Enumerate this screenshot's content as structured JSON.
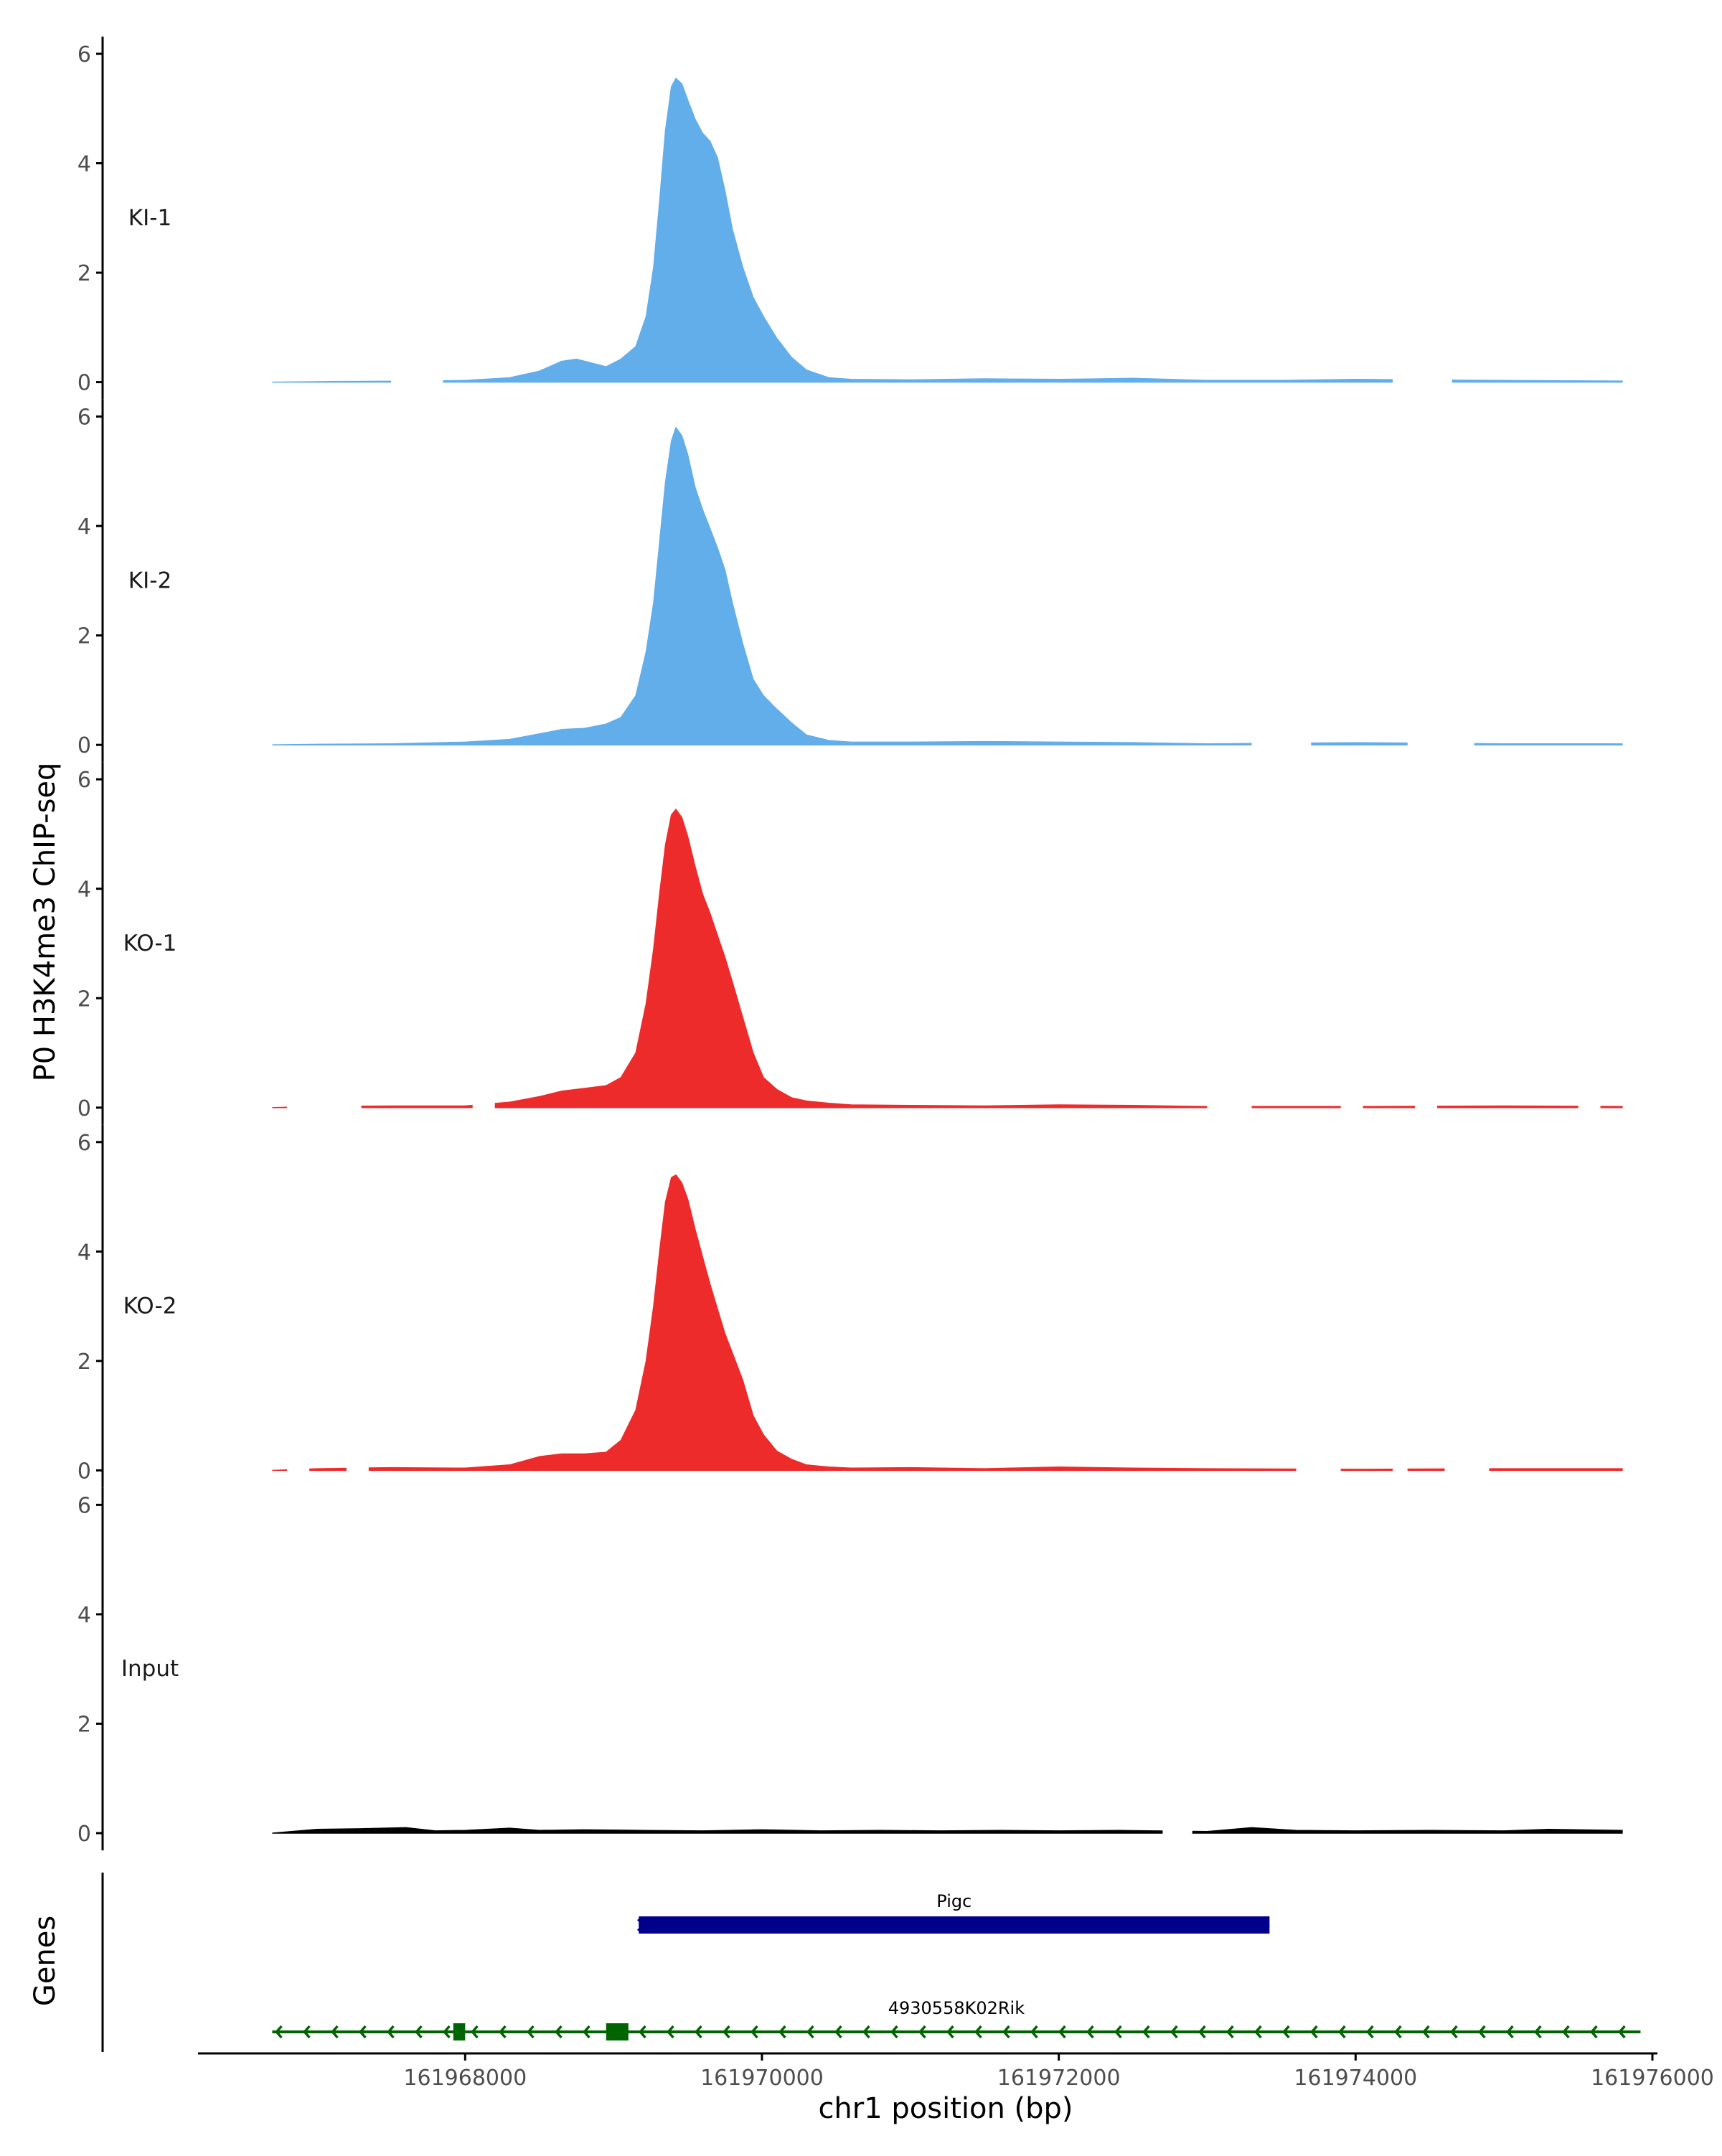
{
  "chart_data": {
    "type": "area",
    "title": "",
    "ylabel": "P0 H3K4me3 ChIP-seq",
    "xlabel": "chr1 position (bp)",
    "gene_track_label": "Genes",
    "xlim": [
      161966200,
      161976000
    ],
    "ylim": [
      0,
      6
    ],
    "y_ticks": [
      0,
      2,
      4,
      6
    ],
    "x_ticks": [
      161968000,
      161970000,
      161972000,
      161974000,
      161976000
    ],
    "x_tick_labels": [
      "161968000",
      "161970000",
      "161972000",
      "161974000",
      "161976000"
    ],
    "tracks": [
      {
        "name": "KI-1",
        "color": "#62aeeb",
        "gaps": [
          [
            161967500,
            161967850
          ],
          [
            161974250,
            161974650
          ]
        ],
        "points": [
          [
            161966700,
            0
          ],
          [
            161967100,
            0.01
          ],
          [
            161967700,
            0.02
          ],
          [
            161968000,
            0.03
          ],
          [
            161968300,
            0.08
          ],
          [
            161968500,
            0.2
          ],
          [
            161968650,
            0.38
          ],
          [
            161968750,
            0.42
          ],
          [
            161968850,
            0.35
          ],
          [
            161968950,
            0.28
          ],
          [
            161969050,
            0.42
          ],
          [
            161969150,
            0.65
          ],
          [
            161969220,
            1.2
          ],
          [
            161969270,
            2.1
          ],
          [
            161969310,
            3.3
          ],
          [
            161969350,
            4.6
          ],
          [
            161969390,
            5.4
          ],
          [
            161969420,
            5.55
          ],
          [
            161969460,
            5.45
          ],
          [
            161969500,
            5.15
          ],
          [
            161969550,
            4.8
          ],
          [
            161969600,
            4.55
          ],
          [
            161969650,
            4.4
          ],
          [
            161969700,
            4.1
          ],
          [
            161969750,
            3.5
          ],
          [
            161969800,
            2.8
          ],
          [
            161969870,
            2.1
          ],
          [
            161969940,
            1.55
          ],
          [
            161970010,
            1.2
          ],
          [
            161970100,
            0.8
          ],
          [
            161970200,
            0.45
          ],
          [
            161970300,
            0.22
          ],
          [
            161970450,
            0.08
          ],
          [
            161970600,
            0.05
          ],
          [
            161971000,
            0.04
          ],
          [
            161971500,
            0.06
          ],
          [
            161972000,
            0.05
          ],
          [
            161972500,
            0.07
          ],
          [
            161973000,
            0.03
          ],
          [
            161973500,
            0.03
          ],
          [
            161974000,
            0.05
          ],
          [
            161975000,
            0.03
          ],
          [
            161975800,
            0.02
          ]
        ]
      },
      {
        "name": "KI-2",
        "color": "#62aeeb",
        "gaps": [
          [
            161973300,
            161973700
          ],
          [
            161974350,
            161974800
          ]
        ],
        "points": [
          [
            161966700,
            0
          ],
          [
            161967000,
            0.01
          ],
          [
            161967500,
            0.02
          ],
          [
            161968000,
            0.05
          ],
          [
            161968300,
            0.1
          ],
          [
            161968500,
            0.2
          ],
          [
            161968650,
            0.28
          ],
          [
            161968800,
            0.3
          ],
          [
            161968950,
            0.38
          ],
          [
            161969050,
            0.5
          ],
          [
            161969150,
            0.9
          ],
          [
            161969220,
            1.7
          ],
          [
            161969270,
            2.6
          ],
          [
            161969310,
            3.7
          ],
          [
            161969350,
            4.8
          ],
          [
            161969390,
            5.55
          ],
          [
            161969420,
            5.8
          ],
          [
            161969460,
            5.65
          ],
          [
            161969500,
            5.3
          ],
          [
            161969550,
            4.7
          ],
          [
            161969600,
            4.3
          ],
          [
            161969650,
            3.95
          ],
          [
            161969700,
            3.6
          ],
          [
            161969750,
            3.2
          ],
          [
            161969800,
            2.6
          ],
          [
            161969870,
            1.85
          ],
          [
            161969940,
            1.2
          ],
          [
            161970010,
            0.9
          ],
          [
            161970100,
            0.65
          ],
          [
            161970200,
            0.4
          ],
          [
            161970300,
            0.18
          ],
          [
            161970450,
            0.08
          ],
          [
            161970600,
            0.05
          ],
          [
            161971000,
            0.05
          ],
          [
            161971500,
            0.06
          ],
          [
            161972000,
            0.05
          ],
          [
            161972500,
            0.04
          ],
          [
            161973000,
            0.02
          ],
          [
            161974000,
            0.04
          ],
          [
            161975000,
            0.02
          ],
          [
            161975800,
            0.02
          ]
        ]
      },
      {
        "name": "KO-1",
        "color": "#ee2b2b",
        "gaps": [
          [
            161966800,
            161967300
          ],
          [
            161968050,
            161968200
          ],
          [
            161973000,
            161973300
          ],
          [
            161973900,
            161974050
          ],
          [
            161974400,
            161974550
          ],
          [
            161975500,
            161975650
          ]
        ],
        "points": [
          [
            161966700,
            0
          ],
          [
            161967000,
            0.02
          ],
          [
            161967500,
            0.03
          ],
          [
            161968000,
            0.03
          ],
          [
            161968300,
            0.1
          ],
          [
            161968500,
            0.2
          ],
          [
            161968650,
            0.3
          ],
          [
            161968800,
            0.35
          ],
          [
            161968950,
            0.4
          ],
          [
            161969050,
            0.55
          ],
          [
            161969150,
            1.0
          ],
          [
            161969220,
            1.9
          ],
          [
            161969270,
            2.9
          ],
          [
            161969310,
            3.9
          ],
          [
            161969350,
            4.8
          ],
          [
            161969390,
            5.35
          ],
          [
            161969420,
            5.45
          ],
          [
            161969460,
            5.3
          ],
          [
            161969500,
            4.95
          ],
          [
            161969550,
            4.4
          ],
          [
            161969600,
            3.9
          ],
          [
            161969650,
            3.55
          ],
          [
            161969700,
            3.15
          ],
          [
            161969750,
            2.75
          ],
          [
            161969800,
            2.3
          ],
          [
            161969870,
            1.65
          ],
          [
            161969940,
            1.0
          ],
          [
            161970010,
            0.55
          ],
          [
            161970100,
            0.33
          ],
          [
            161970200,
            0.18
          ],
          [
            161970300,
            0.12
          ],
          [
            161970450,
            0.08
          ],
          [
            161970600,
            0.05
          ],
          [
            161971000,
            0.04
          ],
          [
            161971500,
            0.03
          ],
          [
            161972000,
            0.05
          ],
          [
            161972500,
            0.04
          ],
          [
            161973000,
            0.02
          ],
          [
            161974000,
            0.02
          ],
          [
            161975000,
            0.03
          ],
          [
            161975800,
            0.02
          ]
        ]
      },
      {
        "name": "KO-2",
        "color": "#ee2b2b",
        "gaps": [
          [
            161966800,
            161966950
          ],
          [
            161967200,
            161967350
          ],
          [
            161973600,
            161973900
          ],
          [
            161974250,
            161974350
          ],
          [
            161974600,
            161974900
          ]
        ],
        "points": [
          [
            161966700,
            0
          ],
          [
            161967000,
            0.03
          ],
          [
            161967500,
            0.05
          ],
          [
            161968000,
            0.04
          ],
          [
            161968300,
            0.1
          ],
          [
            161968500,
            0.25
          ],
          [
            161968650,
            0.3
          ],
          [
            161968800,
            0.3
          ],
          [
            161968950,
            0.33
          ],
          [
            161969050,
            0.55
          ],
          [
            161969150,
            1.1
          ],
          [
            161969220,
            2.0
          ],
          [
            161969270,
            3.0
          ],
          [
            161969310,
            4.0
          ],
          [
            161969350,
            4.9
          ],
          [
            161969390,
            5.35
          ],
          [
            161969420,
            5.4
          ],
          [
            161969460,
            5.25
          ],
          [
            161969500,
            4.95
          ],
          [
            161969550,
            4.4
          ],
          [
            161969600,
            3.9
          ],
          [
            161969650,
            3.4
          ],
          [
            161969700,
            2.95
          ],
          [
            161969750,
            2.5
          ],
          [
            161969800,
            2.15
          ],
          [
            161969870,
            1.65
          ],
          [
            161969940,
            1.0
          ],
          [
            161970010,
            0.65
          ],
          [
            161970100,
            0.35
          ],
          [
            161970200,
            0.2
          ],
          [
            161970300,
            0.1
          ],
          [
            161970450,
            0.06
          ],
          [
            161970600,
            0.04
          ],
          [
            161971000,
            0.05
          ],
          [
            161971500,
            0.03
          ],
          [
            161972000,
            0.06
          ],
          [
            161972500,
            0.04
          ],
          [
            161973000,
            0.03
          ],
          [
            161974000,
            0.02
          ],
          [
            161975000,
            0.03
          ],
          [
            161975800,
            0.03
          ]
        ]
      },
      {
        "name": "Input",
        "color": "#000000",
        "gaps": [
          [
            161972700,
            161972900
          ]
        ],
        "points": [
          [
            161966700,
            0
          ],
          [
            161967000,
            0.07
          ],
          [
            161967300,
            0.08
          ],
          [
            161967600,
            0.1
          ],
          [
            161967800,
            0.04
          ],
          [
            161968000,
            0.05
          ],
          [
            161968300,
            0.09
          ],
          [
            161968500,
            0.05
          ],
          [
            161968800,
            0.06
          ],
          [
            161969200,
            0.05
          ],
          [
            161969600,
            0.04
          ],
          [
            161970000,
            0.06
          ],
          [
            161970400,
            0.04
          ],
          [
            161970800,
            0.05
          ],
          [
            161971200,
            0.04
          ],
          [
            161971600,
            0.05
          ],
          [
            161972000,
            0.04
          ],
          [
            161972400,
            0.05
          ],
          [
            161973000,
            0.03
          ],
          [
            161973300,
            0.1
          ],
          [
            161973600,
            0.05
          ],
          [
            161974000,
            0.04
          ],
          [
            161974500,
            0.05
          ],
          [
            161975000,
            0.04
          ],
          [
            161975300,
            0.07
          ],
          [
            161975800,
            0.05
          ]
        ]
      }
    ],
    "genes": [
      {
        "name": "Pigc",
        "color": "#00008b",
        "strand": "+",
        "start": 161969170,
        "end": 161973420,
        "exons": [
          [
            161969170,
            161973420
          ]
        ]
      },
      {
        "name": "4930558K02Rik",
        "color": "#006400",
        "strand": "-",
        "start": 161966700,
        "end": 161975920,
        "exons": [
          [
            161967920,
            161968000
          ],
          [
            161968950,
            161969100
          ]
        ]
      }
    ]
  }
}
